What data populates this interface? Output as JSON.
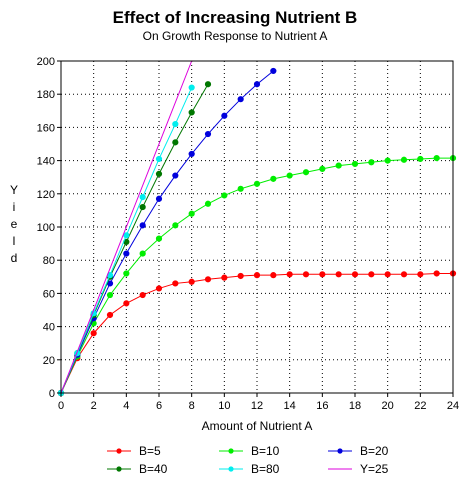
{
  "chart_data": {
    "type": "line",
    "title": "Effect of Increasing Nutrient B",
    "subtitle": "On Growth Response to Nutrient A",
    "xlabel": "Amount of Nutrient A",
    "ylabel": "Y i e l d",
    "xlim": [
      0,
      24
    ],
    "ylim": [
      0,
      200
    ],
    "x_ticks": [
      0,
      2,
      4,
      6,
      8,
      10,
      12,
      14,
      16,
      18,
      20,
      22,
      24
    ],
    "y_ticks": [
      0,
      20,
      40,
      60,
      80,
      100,
      120,
      140,
      160,
      180,
      200
    ],
    "grid": true,
    "legend_position": "bottom",
    "series": [
      {
        "name": "B=5",
        "color": "#ff0000",
        "marker": true,
        "x": [
          0,
          1,
          2,
          3,
          4,
          5,
          6,
          7,
          8,
          9,
          10,
          11,
          12,
          13,
          14,
          15,
          16,
          17,
          18,
          19,
          20,
          21,
          22,
          23,
          24
        ],
        "y": [
          0,
          21,
          36,
          47,
          54,
          59,
          63,
          66,
          67,
          68.5,
          69.5,
          70.5,
          71,
          71,
          71.5,
          71.5,
          71.5,
          71.5,
          71.5,
          71.5,
          71.5,
          71.5,
          71.5,
          72,
          72
        ]
      },
      {
        "name": "B=10",
        "color": "#00ee00",
        "marker": true,
        "x": [
          0,
          1,
          2,
          3,
          4,
          5,
          6,
          7,
          8,
          9,
          10,
          11,
          12,
          13,
          14,
          15,
          16,
          17,
          18,
          19,
          20,
          21,
          22,
          23,
          24
        ],
        "y": [
          0,
          22,
          42,
          59,
          72,
          84,
          93,
          101,
          108,
          114,
          119,
          123,
          126,
          129,
          131,
          133,
          135,
          137,
          138,
          139,
          140,
          140.5,
          141,
          141.5,
          141.5
        ]
      },
      {
        "name": "B=20",
        "color": "#0000dd",
        "marker": true,
        "x": [
          0,
          1,
          2,
          3,
          4,
          5,
          6,
          7,
          8,
          9,
          10,
          11,
          12,
          13
        ],
        "y": [
          0,
          23,
          45,
          66,
          84,
          101,
          117,
          131,
          144,
          156,
          167,
          177,
          186,
          194
        ]
      },
      {
        "name": "B=40",
        "color": "#007700",
        "marker": true,
        "x": [
          0,
          1,
          2,
          3,
          4,
          5,
          6,
          7,
          8,
          9
        ],
        "y": [
          0,
          24,
          47,
          70,
          91,
          112,
          132,
          151,
          169,
          186
        ]
      },
      {
        "name": "B=80",
        "color": "#00eeee",
        "marker": true,
        "x": [
          0,
          1,
          2,
          3,
          4,
          5,
          6,
          7,
          8
        ],
        "y": [
          0,
          24,
          48,
          71,
          95,
          118,
          141,
          162,
          184
        ]
      },
      {
        "name": "Y=25",
        "color": "#dd00dd",
        "marker": false,
        "x": [
          0,
          8
        ],
        "y": [
          0,
          200
        ]
      }
    ]
  }
}
